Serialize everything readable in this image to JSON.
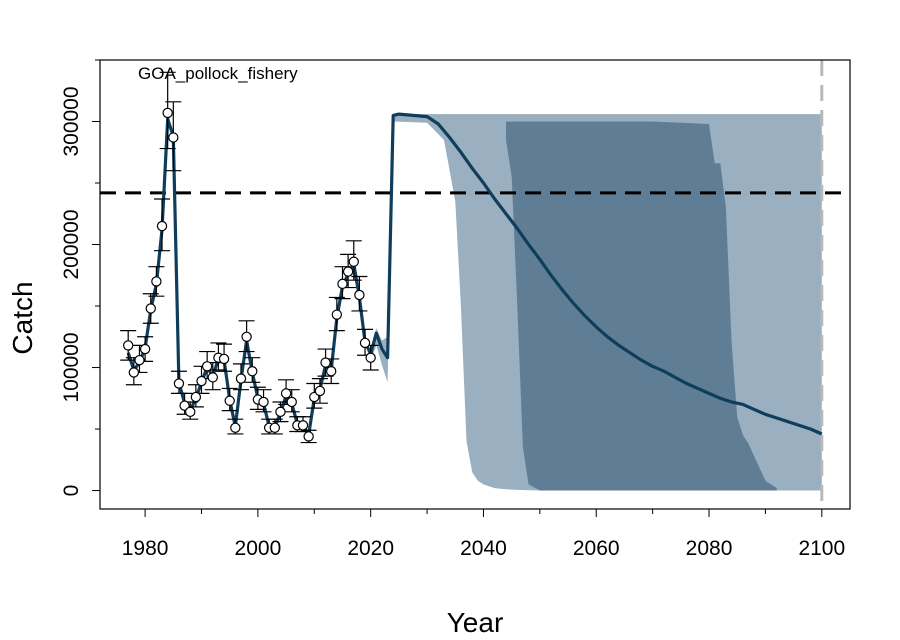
{
  "chart_data": {
    "type": "line",
    "panel_label": "GOA_pollock_fishery",
    "xlabel": "Year",
    "ylabel": "Catch",
    "xlim": [
      1972,
      2105
    ],
    "ylim": [
      -15000,
      350000
    ],
    "x_ticks": [
      1980,
      2000,
      2020,
      2040,
      2060,
      2080,
      2100
    ],
    "x_tick_labels": [
      "1980",
      "2000",
      "2020",
      "2040",
      "2060",
      "2080",
      "2100"
    ],
    "y_ticks": [
      0,
      100000,
      200000,
      300000
    ],
    "y_tick_labels": [
      "0",
      "100000",
      "200000",
      "300000"
    ],
    "reference_line_y": 242000,
    "projection_end_year": 2100,
    "grid": false,
    "colors": {
      "line": "#0f3d5c",
      "band_outer": "#9aafbf",
      "band_inner": "#5f7e96",
      "reference": "#000000",
      "end_marker": "#b8b8b8"
    },
    "observed": {
      "years": [
        1977,
        1978,
        1979,
        1980,
        1981,
        1982,
        1983,
        1984,
        1985,
        1986,
        1987,
        1988,
        1989,
        1990,
        1991,
        1992,
        1993,
        1994,
        1995,
        1996,
        1997,
        1998,
        1999,
        2000,
        2001,
        2002,
        2003,
        2004,
        2005,
        2006,
        2007,
        2008,
        2009,
        2010,
        2011,
        2012,
        2013,
        2014,
        2015,
        2016,
        2017,
        2018,
        2019,
        2020
      ],
      "values": [
        118000,
        96000,
        106000,
        115000,
        148000,
        170000,
        215000,
        307000,
        287000,
        87000,
        69000,
        64000,
        76000,
        89000,
        101000,
        92000,
        108000,
        107000,
        73000,
        51000,
        91000,
        125000,
        97000,
        74000,
        72000,
        51000,
        51000,
        64000,
        79000,
        72000,
        53000,
        53000,
        44000,
        76000,
        81000,
        104000,
        97000,
        143000,
        168000,
        178000,
        186000,
        159000,
        120000,
        108000
      ],
      "err_high": [
        130000,
        108000,
        118000,
        125000,
        160000,
        182000,
        237000,
        340000,
        316000,
        97000,
        79000,
        72000,
        86000,
        101000,
        113000,
        104000,
        120000,
        119000,
        83000,
        58000,
        103000,
        138000,
        108000,
        84000,
        82000,
        58000,
        58000,
        72000,
        90000,
        82000,
        60000,
        60000,
        49000,
        87000,
        91000,
        115000,
        107000,
        157000,
        182000,
        192000,
        203000,
        174000,
        131000,
        118000
      ],
      "err_low": [
        106000,
        86000,
        96000,
        105000,
        136000,
        158000,
        195000,
        278000,
        260000,
        79000,
        62000,
        58000,
        68000,
        79000,
        91000,
        82000,
        98000,
        97000,
        65000,
        46000,
        82000,
        113000,
        88000,
        66000,
        64000,
        46000,
        46000,
        56000,
        70000,
        64000,
        48000,
        48000,
        39000,
        67000,
        71000,
        93000,
        87000,
        130000,
        156000,
        165000,
        171000,
        146000,
        110000,
        98000
      ]
    },
    "fit_line": {
      "years": [
        1977,
        1978,
        1979,
        1980,
        1981,
        1982,
        1983,
        1984,
        1985,
        1986,
        1987,
        1988,
        1989,
        1990,
        1991,
        1992,
        1993,
        1994,
        1995,
        1996,
        1997,
        1998,
        1999,
        2000,
        2001,
        2002,
        2003,
        2004,
        2005,
        2006,
        2007,
        2008,
        2009,
        2010,
        2011,
        2012,
        2013,
        2014,
        2015,
        2016,
        2017,
        2018,
        2019,
        2020,
        2021,
        2022,
        2023,
        2024,
        2025,
        2030,
        2032,
        2034,
        2036,
        2038,
        2040,
        2042,
        2044,
        2046,
        2048,
        2050,
        2052,
        2054,
        2056,
        2058,
        2060,
        2062,
        2064,
        2066,
        2068,
        2070,
        2072,
        2074,
        2076,
        2078,
        2080,
        2082,
        2084,
        2086,
        2088,
        2090,
        2092,
        2094,
        2096,
        2098,
        2100
      ],
      "values": [
        112000,
        98000,
        104000,
        116000,
        147000,
        168000,
        212000,
        302000,
        288000,
        88000,
        71000,
        65000,
        75000,
        88000,
        100000,
        93000,
        107000,
        106000,
        74000,
        52000,
        90000,
        122000,
        96000,
        75000,
        71000,
        52000,
        52000,
        63000,
        77000,
        71000,
        54000,
        53000,
        45000,
        75000,
        82000,
        102000,
        98000,
        140000,
        166000,
        176000,
        184000,
        157000,
        121000,
        111000,
        128000,
        115000,
        108000,
        305000,
        306000,
        304000,
        298000,
        287000,
        275000,
        262000,
        250000,
        237000,
        225000,
        213000,
        200000,
        188000,
        175000,
        163000,
        152000,
        142000,
        133000,
        125000,
        118000,
        112000,
        106000,
        101000,
        97000,
        92000,
        87000,
        83000,
        79000,
        75000,
        72000,
        70000,
        66000,
        62000,
        59000,
        56000,
        53000,
        50000,
        46000
      ]
    },
    "band_outer": {
      "years": [
        2020,
        2021,
        2022,
        2023,
        2024,
        2030,
        2033,
        2035,
        2036,
        2037,
        2038,
        2039,
        2040,
        2042,
        2044,
        2046,
        2050,
        2060,
        2070,
        2080,
        2082,
        2084,
        2086,
        2088,
        2090,
        2092,
        2094,
        2100
      ],
      "upper": [
        115000,
        132000,
        122000,
        125000,
        306000,
        306000,
        306000,
        306000,
        306000,
        306000,
        306000,
        306000,
        306000,
        306000,
        306000,
        306000,
        306000,
        306000,
        306000,
        306000,
        306000,
        306000,
        306000,
        306000,
        306000,
        306000,
        306000,
        306000
      ],
      "lower": [
        105000,
        118000,
        102000,
        88000,
        300000,
        299000,
        285000,
        235000,
        150000,
        40000,
        15000,
        8000,
        5000,
        2000,
        1000,
        500,
        0,
        0,
        0,
        0,
        0,
        0,
        0,
        0,
        0,
        0,
        0,
        0
      ]
    },
    "band_inner": {
      "years": [
        2044,
        2045,
        2046,
        2047,
        2048,
        2050,
        2060,
        2070,
        2080,
        2081,
        2082,
        2083,
        2084,
        2085,
        2086,
        2087,
        2088,
        2090,
        2092
      ],
      "upper": [
        300000,
        300000,
        300000,
        300000,
        300000,
        300000,
        300000,
        300000,
        298000,
        266000,
        266000,
        230000,
        120000,
        60000,
        45000,
        38000,
        28000,
        8000,
        2000
      ],
      "lower": [
        285000,
        255000,
        150000,
        35000,
        5000,
        0,
        0,
        0,
        0,
        0,
        0,
        0,
        0,
        0,
        0,
        0,
        0,
        0,
        0
      ]
    }
  }
}
